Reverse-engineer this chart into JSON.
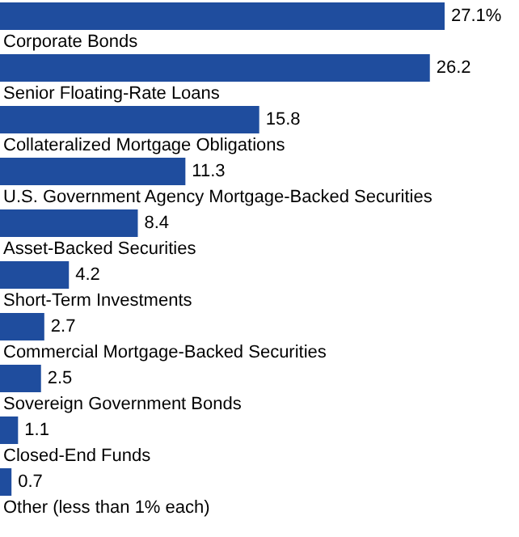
{
  "chart_data": {
    "type": "bar",
    "orientation": "horizontal",
    "categories": [
      "Corporate Bonds",
      "Senior Floating-Rate Loans",
      "Collateralized Mortgage Obligations",
      "U.S. Government Agency Mortgage-Backed Securities",
      "Asset-Backed Securities",
      "Short-Term Investments",
      "Commercial Mortgage-Backed Securities",
      "Sovereign Government Bonds",
      "Closed-End Funds",
      "Other (less than 1% each)"
    ],
    "values": [
      27.1,
      26.2,
      15.8,
      11.3,
      8.4,
      4.2,
      2.7,
      2.5,
      1.1,
      0.7
    ],
    "value_labels": [
      "27.1%",
      "26.2",
      "15.8",
      "11.3",
      "8.4",
      "4.2",
      "2.7",
      "2.5",
      "1.1",
      "0.7"
    ],
    "color": "#1f4d9e"
  }
}
